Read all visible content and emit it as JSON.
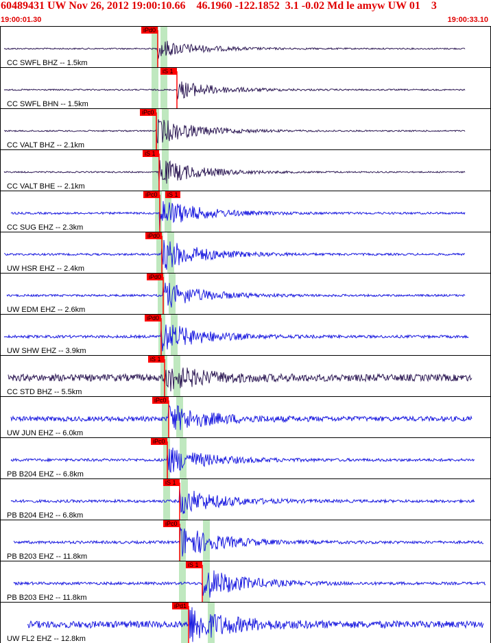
{
  "header": {
    "title": "60489431 UW Nov 26, 2012 19:00:10.66    46.1960 -122.1852  3.1 -0.02 Md le amyw UW 01    3",
    "start_time": "19:00:01.30",
    "end_time": "19:00:33.10"
  },
  "colors": {
    "header_text": "#e00000",
    "short_period": "#2e1a55",
    "broadband": "#1a1adf",
    "pick_box": "#ff0000",
    "pick_window": "#bfe8bf"
  },
  "traces": [
    {
      "label": "CC SWFL BHZ -- 1.5km",
      "color": "short_period",
      "pick": "iPd0"
    },
    {
      "label": "CC SWFL BHN -- 1.5km",
      "color": "short_period",
      "pick": "iS 1"
    },
    {
      "label": "CC VALT BHZ -- 2.1km",
      "color": "short_period",
      "pick": "iPc0"
    },
    {
      "label": "CC VALT BHE -- 2.1km",
      "color": "short_period",
      "pick": "iS 1"
    },
    {
      "label": "CC SUG EHZ -- 2.3km",
      "color": "broadband",
      "pick": "iPc0",
      "pick2": "iS 1"
    },
    {
      "label": "UW HSR EHZ -- 2.4km",
      "color": "broadband",
      "pick": "iPd0"
    },
    {
      "label": "UW EDM EHZ -- 2.6km",
      "color": "broadband",
      "pick": "iPd0"
    },
    {
      "label": "UW SHW EHZ -- 3.9km",
      "color": "broadband",
      "pick": "iPd0"
    },
    {
      "label": "CC STD BHZ -- 5.5km",
      "color": "short_period",
      "pick": "iS 1"
    },
    {
      "label": "UW JUN EHZ -- 6.0km",
      "color": "broadband",
      "pick": "iPc0"
    },
    {
      "label": "PB B204 EHZ -- 6.8km",
      "color": "broadband",
      "pick": "iPc0"
    },
    {
      "label": "PB B204 EH2 -- 6.8km",
      "color": "broadband",
      "pick": "iS 1"
    },
    {
      "label": "PB B203 EHZ -- 11.8km",
      "color": "broadband",
      "pick": "iPc0"
    },
    {
      "label": "PB B203 EH2 -- 11.8km",
      "color": "broadband",
      "pick": "iS 1"
    },
    {
      "label": "UW FL2 EHZ -- 12.8km",
      "color": "broadband",
      "pick": "iPd1"
    }
  ]
}
